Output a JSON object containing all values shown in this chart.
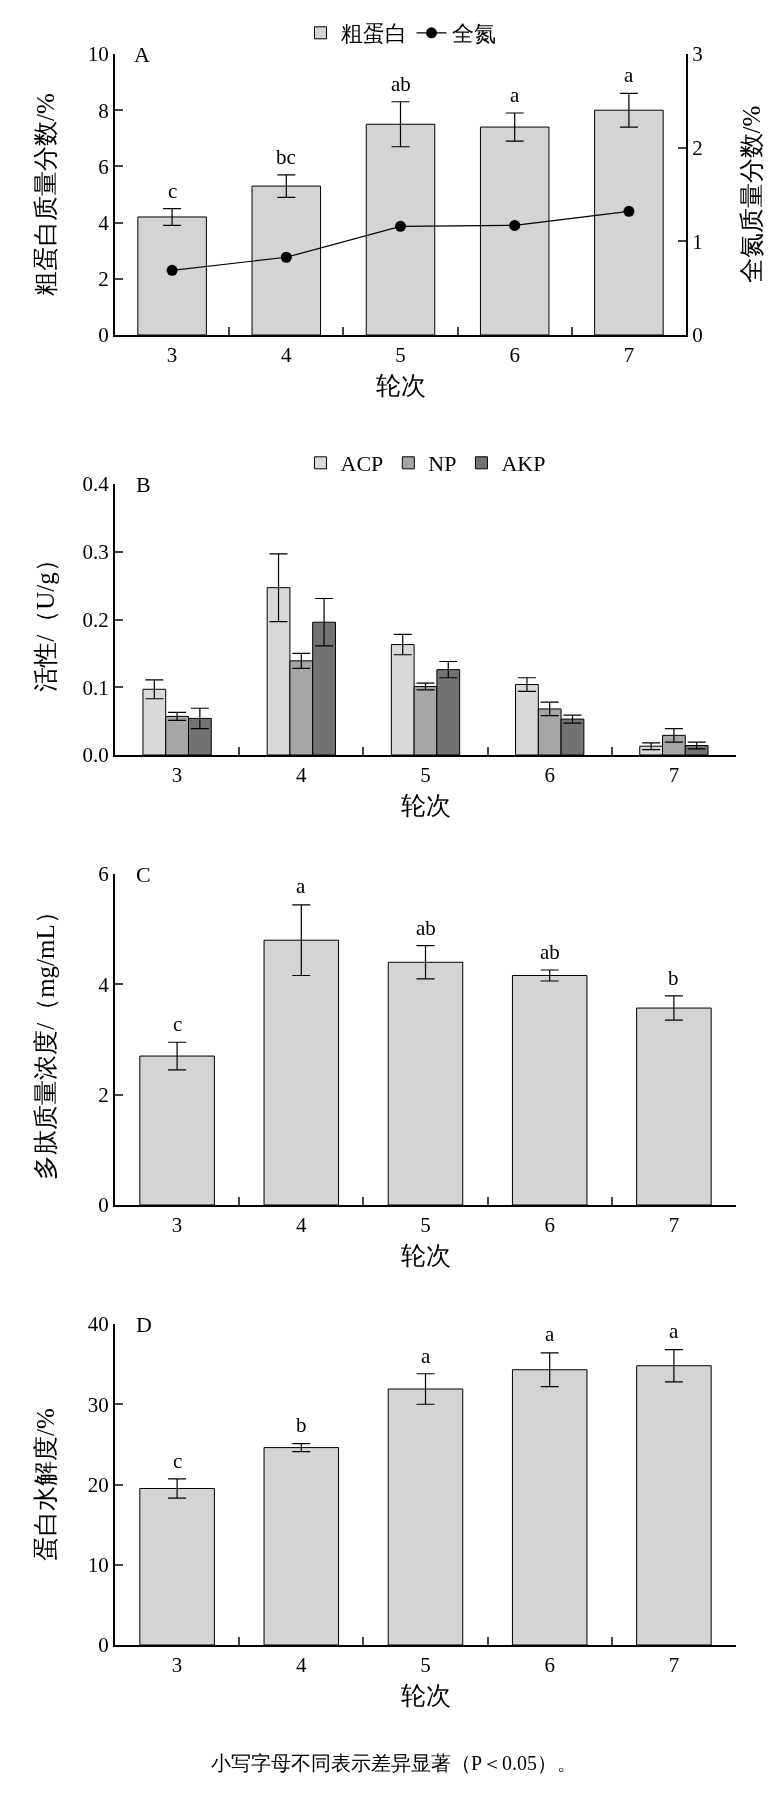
{
  "chart_data": [
    {
      "type": "bar",
      "title": "A",
      "categories": [
        "3",
        "4",
        "5",
        "6",
        "7"
      ],
      "xlabel": "轮次",
      "ylabel": "粗蛋白质量分数/%",
      "y2label": "全氮质量分数/%",
      "ylim": [
        0,
        10
      ],
      "yticks": [
        0,
        2,
        4,
        6,
        8,
        10
      ],
      "y2lim": [
        0,
        3
      ],
      "y2ticks": [
        0,
        1,
        2,
        3
      ],
      "grid": false,
      "legend": "top",
      "series": [
        {
          "name": "粗蛋白",
          "color": "#d4d4d4",
          "values": [
            4.2,
            5.3,
            7.5,
            7.4,
            8.0
          ],
          "errors": [
            0.3,
            0.4,
            0.8,
            0.5,
            0.6
          ]
        },
        {
          "name": "全氮",
          "type": "line",
          "axis": "y2",
          "color": "#000000",
          "marker": "circle",
          "line_style": "solid",
          "values": [
            0.69,
            0.83,
            1.16,
            1.17,
            1.32
          ]
        }
      ],
      "annotations": [
        {
          "text": "c",
          "x": "3",
          "y": 4.5
        },
        {
          "text": "bc",
          "x": "4",
          "y": 5.7
        },
        {
          "text": "ab",
          "x": "5",
          "y": 8.3
        },
        {
          "text": "a",
          "x": "6",
          "y": 7.9
        },
        {
          "text": "a",
          "x": "7",
          "y": 8.6
        }
      ]
    },
    {
      "type": "bar",
      "title": "B",
      "categories": [
        "3",
        "4",
        "5",
        "6",
        "7"
      ],
      "xlabel": "轮次",
      "ylabel": "活性/（U/g）",
      "ylim": [
        0,
        0.4
      ],
      "yticks": [
        {
          "value": 0,
          "label": "0.0"
        },
        0.1,
        0.2,
        0.3,
        0.4
      ],
      "grid": false,
      "legend": "top",
      "series": [
        {
          "name": "ACP",
          "color": "#d9d9d9",
          "values": [
            0.097,
            0.247,
            0.163,
            0.104,
            0.013
          ],
          "errors": [
            0.014,
            0.05,
            0.015,
            0.01,
            0.005
          ]
        },
        {
          "name": "NP",
          "color": "#a6a6a6",
          "values": [
            0.057,
            0.139,
            0.101,
            0.068,
            0.029
          ],
          "errors": [
            0.006,
            0.011,
            0.005,
            0.01,
            0.01
          ]
        },
        {
          "name": "AKP",
          "color": "#737373",
          "values": [
            0.054,
            0.196,
            0.126,
            0.053,
            0.014
          ],
          "errors": [
            0.015,
            0.035,
            0.012,
            0.006,
            0.005
          ]
        }
      ]
    },
    {
      "type": "bar",
      "title": "C",
      "categories": [
        "3",
        "4",
        "5",
        "6",
        "7"
      ],
      "xlabel": "轮次",
      "ylabel": "多肽质量浓度/（mg/mL）",
      "ylim": [
        0,
        6
      ],
      "yticks": [
        0,
        2,
        4,
        6
      ],
      "grid": false,
      "series": [
        {
          "color": "#d4d4d4",
          "values": [
            2.7,
            4.8,
            4.4,
            4.16,
            3.57
          ],
          "errors": [
            0.25,
            0.64,
            0.3,
            0.1,
            0.22
          ]
        }
      ],
      "annotations": [
        {
          "text": "c",
          "x": "3",
          "y": 2.95
        },
        {
          "text": "a",
          "x": "4",
          "y": 5.45
        },
        {
          "text": "ab",
          "x": "5",
          "y": 4.7
        },
        {
          "text": "ab",
          "x": "6",
          "y": 4.26
        },
        {
          "text": "b",
          "x": "7",
          "y": 3.79
        }
      ]
    },
    {
      "type": "bar",
      "title": "D",
      "categories": [
        "3",
        "4",
        "5",
        "6",
        "7"
      ],
      "xlabel": "轮次",
      "ylabel": "蛋白水解度/%",
      "ylim": [
        0,
        40
      ],
      "yticks": [
        0,
        10,
        20,
        30,
        40
      ],
      "grid": false,
      "series": [
        {
          "color": "#d4d4d4",
          "values": [
            19.5,
            24.6,
            31.9,
            34.3,
            34.8
          ],
          "errors": [
            1.2,
            0.5,
            1.9,
            2.1,
            2.0
          ]
        }
      ],
      "annotations": [
        {
          "text": "c",
          "x": "3",
          "y": 20.7
        },
        {
          "text": "b",
          "x": "4",
          "y": 25.2
        },
        {
          "text": "a",
          "x": "5",
          "y": 33.8
        },
        {
          "text": "a",
          "x": "6",
          "y": 36.5
        },
        {
          "text": "a",
          "x": "7",
          "y": 36.9
        },
        "小写字母不同表示差异显著（P＜0.05）。"
      ]
    }
  ]
}
